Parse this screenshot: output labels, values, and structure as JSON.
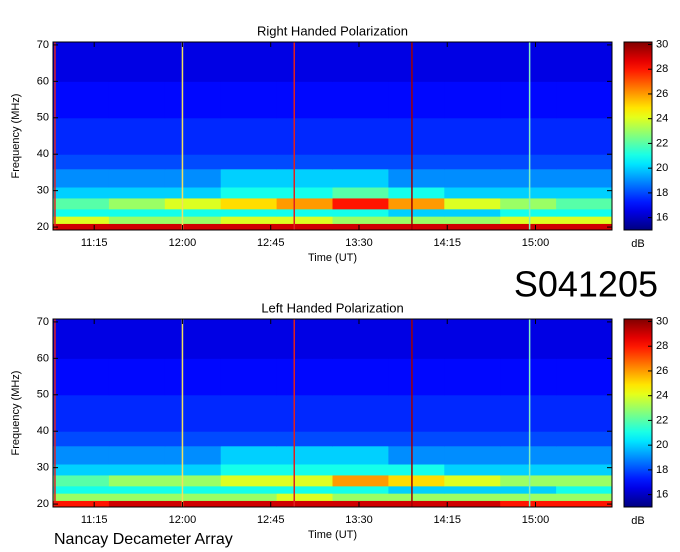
{
  "id_label": "S041205",
  "footer": "Nancay Decameter Array",
  "chart_data": [
    {
      "type": "heatmap",
      "title": "Right Handed Polarization",
      "x_label": "Time (UT)",
      "y_label": "Frequency (MHz)",
      "colorbar_label": "dB",
      "colormap": "jet",
      "xlim": [
        654,
        939
      ],
      "ylim": [
        19.2,
        70.8
      ],
      "zlim": [
        15,
        30.2
      ],
      "xticks": [
        {
          "value": 675,
          "label": "11:15"
        },
        {
          "value": 720,
          "label": "12:00"
        },
        {
          "value": 765,
          "label": "12:45"
        },
        {
          "value": 810,
          "label": "13:30"
        },
        {
          "value": 855,
          "label": "14:15"
        },
        {
          "value": 900,
          "label": "15:00"
        }
      ],
      "yticks": [
        20,
        30,
        40,
        50,
        60,
        70
      ],
      "zticks": [
        16,
        18,
        20,
        22,
        24,
        26,
        28,
        30
      ],
      "x_edges": [
        654,
        682.5,
        711,
        739.5,
        768,
        796.5,
        825,
        853.5,
        882,
        910.5,
        939
      ],
      "y_edges": [
        19.2,
        21,
        23,
        25,
        28,
        31,
        36,
        40,
        50,
        60,
        70.8
      ],
      "z": [
        [
          29,
          29,
          29,
          29,
          29,
          29,
          29,
          29,
          29,
          29
        ],
        [
          24,
          23,
          23,
          24,
          24,
          23,
          23,
          23,
          24,
          24
        ],
        [
          21,
          21,
          21,
          21,
          21,
          21,
          20,
          20,
          21,
          21
        ],
        [
          22,
          23,
          24,
          25,
          26,
          28,
          26,
          24,
          23,
          22
        ],
        [
          20,
          20,
          20,
          21,
          21,
          22,
          21,
          20,
          20,
          20
        ],
        [
          19,
          19,
          19,
          20,
          20,
          20,
          19,
          19,
          19,
          19
        ],
        [
          18,
          18,
          18,
          18,
          18,
          18,
          18,
          18,
          18,
          18
        ],
        [
          17.5,
          17.5,
          17.5,
          17.5,
          17.5,
          17.5,
          17.5,
          17.5,
          17.5,
          17.5
        ],
        [
          17,
          17,
          17,
          17,
          17,
          17,
          17,
          17,
          17,
          17
        ],
        [
          16.5,
          16.5,
          16.5,
          16.5,
          16.5,
          16.5,
          16.5,
          16.5,
          16.5,
          16.5
        ]
      ],
      "vlines": [
        {
          "x": 655,
          "color": "#e02020"
        },
        {
          "x": 720,
          "color": "#f0e060"
        },
        {
          "x": 777,
          "color": "#e02020"
        },
        {
          "x": 837,
          "color": "#a00000"
        },
        {
          "x": 897,
          "color": "#80f0c0"
        }
      ]
    },
    {
      "type": "heatmap",
      "title": "Left Handed Polarization",
      "x_label": "Time (UT)",
      "y_label": "Frequency (MHz)",
      "colorbar_label": "dB",
      "colormap": "jet",
      "xlim": [
        654,
        939
      ],
      "ylim": [
        19.2,
        70.8
      ],
      "zlim": [
        15,
        30.2
      ],
      "xticks": [
        {
          "value": 675,
          "label": "11:15"
        },
        {
          "value": 720,
          "label": "12:00"
        },
        {
          "value": 765,
          "label": "12:45"
        },
        {
          "value": 810,
          "label": "13:30"
        },
        {
          "value": 855,
          "label": "14:15"
        },
        {
          "value": 900,
          "label": "15:00"
        }
      ],
      "yticks": [
        20,
        30,
        40,
        50,
        60,
        70
      ],
      "zticks": [
        16,
        18,
        20,
        22,
        24,
        26,
        28,
        30
      ],
      "x_edges": [
        654,
        682.5,
        711,
        739.5,
        768,
        796.5,
        825,
        853.5,
        882,
        910.5,
        939
      ],
      "y_edges": [
        19.2,
        21,
        23,
        25,
        28,
        31,
        36,
        40,
        50,
        60,
        70.8
      ],
      "z": [
        [
          28,
          29,
          29,
          29,
          29,
          29,
          29,
          29,
          28,
          28
        ],
        [
          23,
          23,
          23,
          23,
          24,
          23,
          23,
          23,
          23,
          23
        ],
        [
          21,
          21,
          21,
          21,
          21,
          21,
          20,
          20,
          20,
          21
        ],
        [
          22,
          23,
          23,
          24,
          24,
          26,
          25,
          24,
          23,
          23
        ],
        [
          20,
          20,
          20,
          21,
          21,
          21,
          21,
          20,
          20,
          20
        ],
        [
          19,
          19,
          19,
          20,
          20,
          20,
          19,
          19,
          19,
          19
        ],
        [
          18,
          18,
          18,
          18,
          18,
          18,
          18,
          18,
          18,
          18
        ],
        [
          17.5,
          17.5,
          17.5,
          17.5,
          17.5,
          17.5,
          17.5,
          17.5,
          17.5,
          17.5
        ],
        [
          17,
          17,
          17,
          17,
          17,
          17,
          17,
          17,
          17,
          17
        ],
        [
          16.5,
          16.5,
          16.5,
          16.5,
          16.5,
          16.5,
          16.5,
          16.5,
          16.5,
          16.5
        ]
      ],
      "vlines": [
        {
          "x": 655,
          "color": "#e02020"
        },
        {
          "x": 720,
          "color": "#f0e060"
        },
        {
          "x": 777,
          "color": "#e02020"
        },
        {
          "x": 837,
          "color": "#a00000"
        },
        {
          "x": 897,
          "color": "#80f0c0"
        }
      ]
    }
  ]
}
